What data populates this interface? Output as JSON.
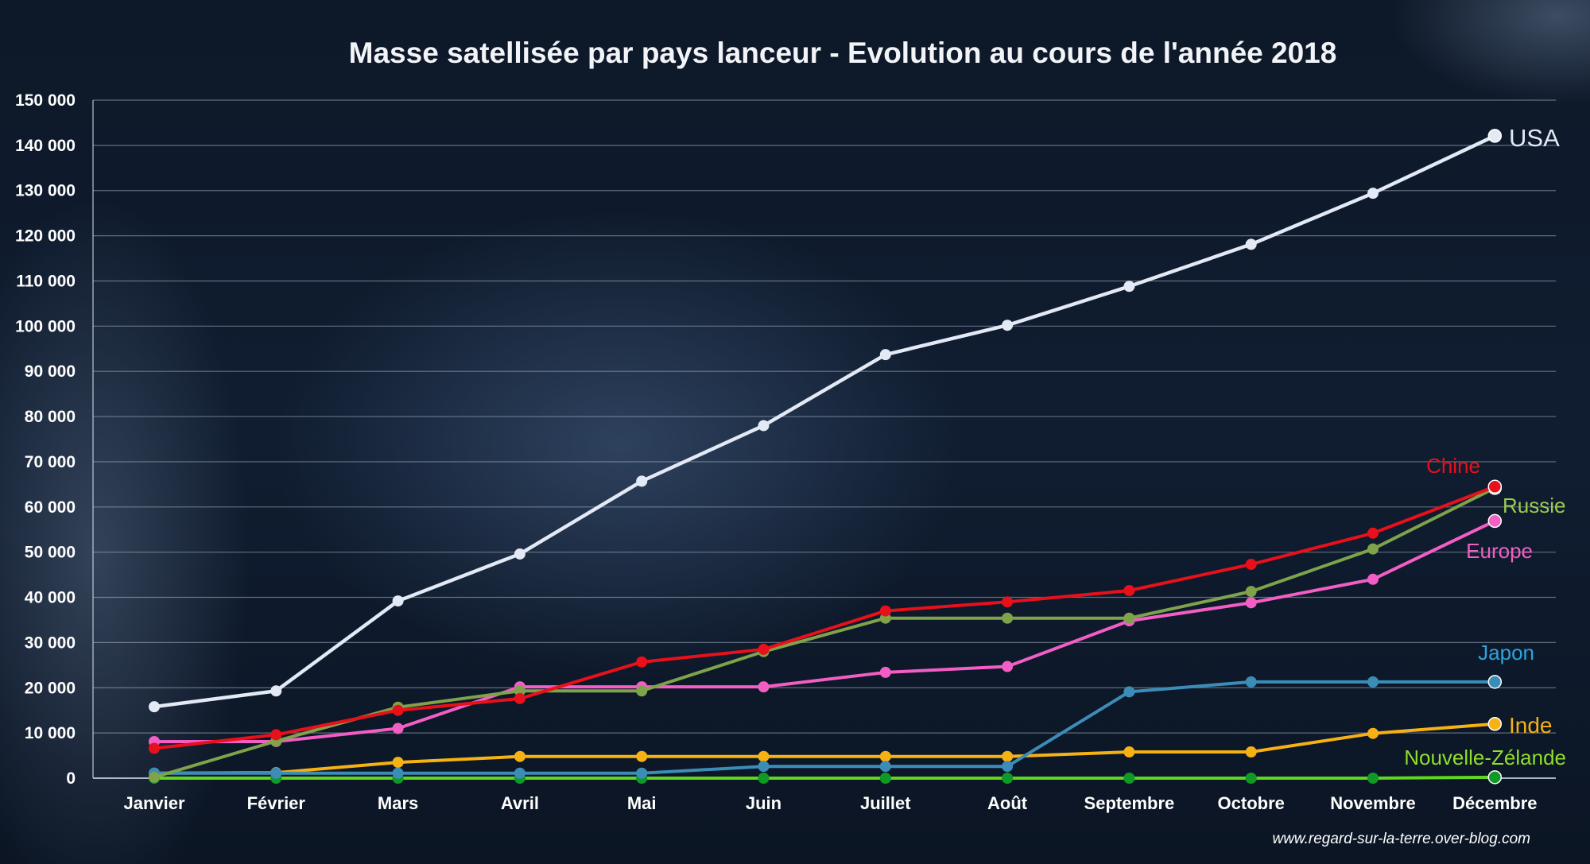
{
  "chart_data": {
    "type": "line",
    "title": "Masse satellisée par pays lanceur - Evolution au cours de l'année 2018",
    "xlabel": "",
    "ylabel": "",
    "ylim": [
      0,
      150000
    ],
    "yticks": [
      0,
      10000,
      20000,
      30000,
      40000,
      50000,
      60000,
      70000,
      80000,
      90000,
      100000,
      110000,
      120000,
      130000,
      140000,
      150000
    ],
    "ytick_labels": [
      "0",
      "10 000",
      "20 000",
      "30 000",
      "40 000",
      "50 000",
      "60 000",
      "70 000",
      "80 000",
      "90 000",
      "100 000",
      "110 000",
      "120 000",
      "130 000",
      "140 000",
      "150 000"
    ],
    "categories": [
      "Janvier",
      "Février",
      "Mars",
      "Avril",
      "Mai",
      "Juin",
      "Juillet",
      "Août",
      "Septembre",
      "Octobre",
      "Novembre",
      "Décembre"
    ],
    "grid": true,
    "legend": "labels at line ends",
    "series": [
      {
        "name": "USA",
        "color": "#e3e9f5",
        "values": [
          15800,
          19300,
          39200,
          49600,
          65700,
          78000,
          93700,
          100200,
          108800,
          118100,
          129400,
          142100
        ]
      },
      {
        "name": "Chine",
        "color": "#e8101a",
        "values": [
          6600,
          9600,
          15000,
          17600,
          25700,
          28500,
          37000,
          39000,
          41500,
          47300,
          54200,
          64500
        ]
      },
      {
        "name": "Russie",
        "color": "#7ea34a",
        "values": [
          200,
          8200,
          15700,
          19300,
          19300,
          28000,
          35400,
          35400,
          35400,
          41300,
          50700,
          64200
        ]
      },
      {
        "name": "Europe",
        "color": "#f25ec4",
        "values": [
          8100,
          8100,
          11000,
          20200,
          20200,
          20200,
          23400,
          24700,
          34800,
          38800,
          44000,
          56900
        ]
      },
      {
        "name": "Japon",
        "color": "#3b8db8",
        "values": [
          1100,
          1100,
          1100,
          1100,
          1100,
          2600,
          2600,
          2600,
          19100,
          21300,
          21300,
          21300
        ]
      },
      {
        "name": "Inde",
        "color": "#f6b214",
        "values": [
          1100,
          1200,
          3500,
          4800,
          4800,
          4800,
          4800,
          4800,
          5800,
          5800,
          9900,
          12000
        ]
      },
      {
        "name": "Nouvelle-Zélande",
        "color": "#5fd61f",
        "values": [
          0,
          0,
          0,
          0,
          0,
          0,
          0,
          0,
          0,
          0,
          0,
          200
        ]
      }
    ],
    "label_colors": {
      "USA": "#e3e9f5",
      "Chine": "#e8101a",
      "Russie": "#9ccc4e",
      "Europe": "#f25ec4",
      "Japon": "#2fa3dc",
      "Inde": "#f6b214",
      "Nouvelle-Zélande": "#8fe02a"
    },
    "marker_colors": {
      "Nouvelle-Zélande": "#0e9a25"
    },
    "source": "www.regard-sur-la-terre.over-blog.com"
  }
}
